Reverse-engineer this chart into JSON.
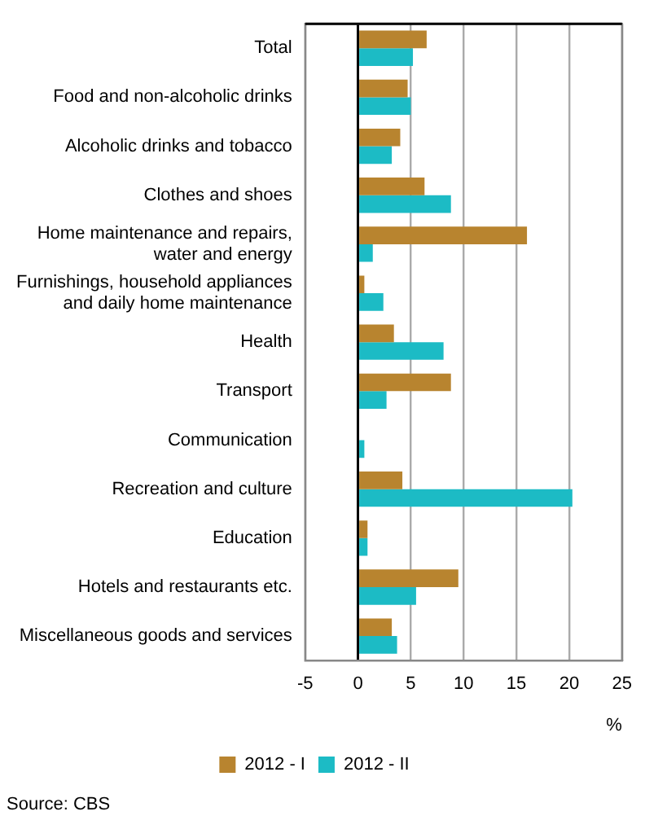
{
  "chart_data": {
    "type": "bar",
    "orientation": "horizontal",
    "xlabel": "%",
    "annotations": [
      "Source: CBS"
    ],
    "categories": [
      "Total",
      "Food and non-alcoholic drinks",
      "Alcoholic drinks and tobacco",
      "Clothes and shoes",
      "Home maintenance and repairs, water and energy",
      "Furnishings, household appliances and daily home maintenance",
      "Health",
      "Transport",
      "Communication",
      "Recreation and culture",
      "Education",
      "Hotels and restaurants etc.",
      "Miscellaneous goods and services"
    ],
    "series": [
      {
        "name": "2012 - I",
        "color": "#b8842f",
        "values": [
          6.5,
          4.7,
          4.0,
          6.3,
          16.0,
          0.6,
          3.4,
          8.8,
          0,
          4.2,
          0.9,
          9.5,
          3.2
        ]
      },
      {
        "name": "2012 - II",
        "color": "#1cbbc5",
        "values": [
          5.2,
          5.0,
          3.2,
          8.8,
          1.4,
          2.4,
          8.1,
          2.7,
          0.6,
          20.3,
          0.9,
          5.5,
          3.7
        ]
      }
    ],
    "xlim": [
      -5,
      25
    ],
    "xticks": [
      -5,
      0,
      5,
      10,
      15,
      20,
      25
    ],
    "grid": "x",
    "legend": "bottom"
  }
}
